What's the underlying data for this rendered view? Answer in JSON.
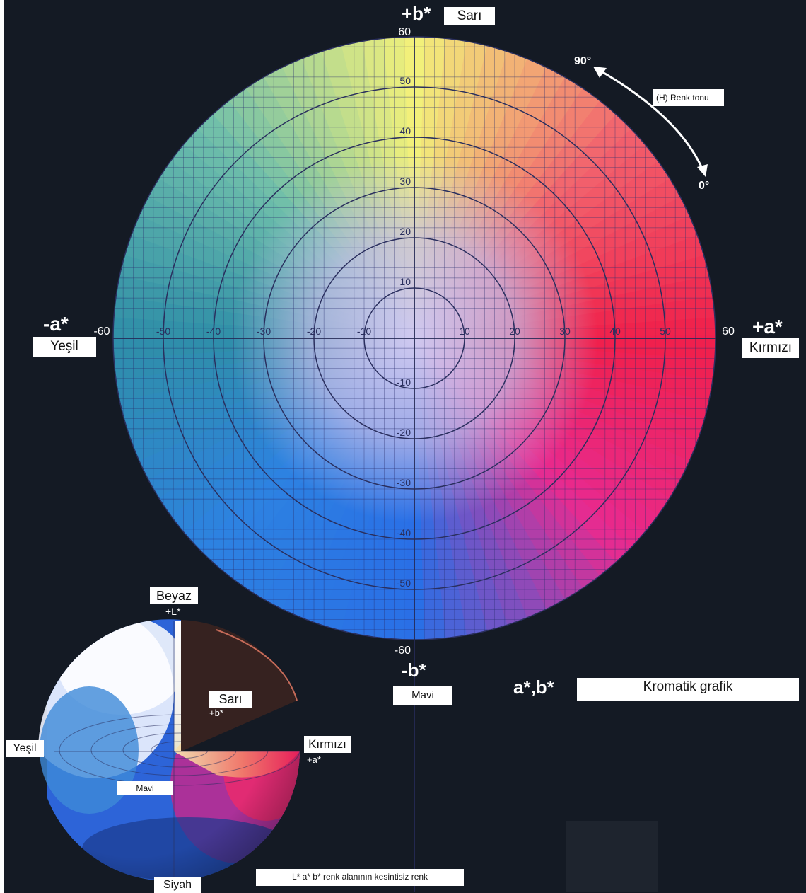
{
  "axis_labels": {
    "plus_b": "+b*",
    "minus_b": "-b*",
    "plus_a": "+a*",
    "minus_a": "-a*",
    "top": "Sarı",
    "bottom": "Mavi",
    "right": "Kırmızı",
    "left": "Yeşil"
  },
  "ticks": {
    "a_axis": [
      "-60",
      "-50",
      "-40",
      "-30",
      "-20",
      "-10",
      "10",
      "20",
      "30",
      "40",
      "50",
      "60"
    ],
    "b_axis": [
      "60",
      "50",
      "40",
      "30",
      "20",
      "10",
      "-10",
      "-20",
      "-30",
      "-40",
      "-50",
      "-60"
    ]
  },
  "hue": {
    "label": "(H) Renk tonu",
    "start_angle": "90°",
    "end_angle": "0°"
  },
  "title": {
    "prefix": "a*,b*",
    "box": "Kromatik grafik"
  },
  "sphere": {
    "top": "Beyaz",
    "top_axis": "+L*",
    "bottom": "Siyah",
    "yellow": "Sarı",
    "yellow_axis": "+b*",
    "red": "Kırmızı",
    "red_axis": "+a*",
    "green": "Yeşil",
    "blue": "Mavi"
  },
  "caption": "L* a* b* renk alanının kesintisiz renk",
  "colors": {
    "background": "#141a24",
    "yellow": "#f2f07a",
    "red": "#f0204a",
    "blue": "#2a6fe6",
    "green": "#2f8fa8",
    "magenta": "#e82a8f",
    "center": "#c6c0ea"
  }
}
